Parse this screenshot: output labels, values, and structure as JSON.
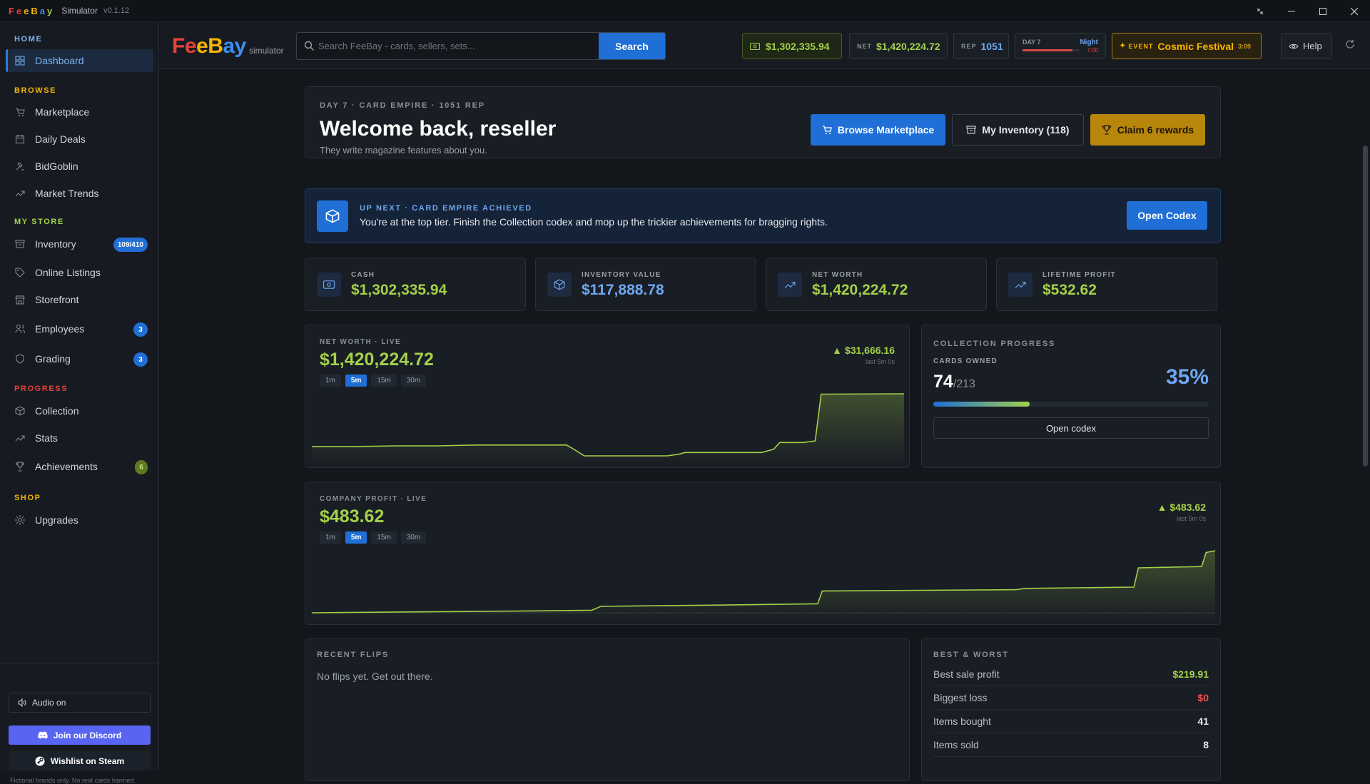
{
  "titlebar": {
    "logo": "FeeBay",
    "app": "Simulator",
    "version": "v0.1.12",
    "controls": [
      "shrink-icon",
      "minimize-icon",
      "maximize-icon",
      "close-icon"
    ]
  },
  "sidebar": {
    "sections": {
      "home": "HOME",
      "browse": "BROWSE",
      "my_store": "MY STORE",
      "progress": "PROGRESS",
      "shop": "SHOP"
    },
    "items": {
      "dashboard": "Dashboard",
      "marketplace": "Marketplace",
      "daily_deals": "Daily Deals",
      "bidgoblin": "BidGoblin",
      "market_trends": "Market Trends",
      "inventory": "Inventory",
      "online_listings": "Online Listings",
      "storefront": "Storefront",
      "employees": "Employees",
      "grading": "Grading",
      "collection": "Collection",
      "stats": "Stats",
      "achievements": "Achievements",
      "upgrades": "Upgrades"
    },
    "badges": {
      "inventory": "109/410",
      "employees": "3",
      "grading": "3",
      "achievements": "6"
    },
    "audio": "Audio on",
    "discord": "Join our Discord",
    "steam": "Wishlist on Steam",
    "footer": "Fictional brands only. No real cards harmed."
  },
  "header": {
    "logo": "FeeBay",
    "logo_sub": "simulator",
    "search_placeholder": "Search FeeBay - cards, sellers, sets...",
    "search_button": "Search",
    "cash": "$1,302,335.94",
    "net_label": "NET",
    "net": "$1,420,224.72",
    "rep_label": "REP",
    "rep": "1051",
    "day": "DAY 7",
    "time_of_day": "Night",
    "time_clock": "7:00",
    "day_progress": 0.88,
    "event_label": "EVENT",
    "event_name": "Cosmic Festival",
    "event_timer": "3:09",
    "help": "Help"
  },
  "welcome": {
    "eyebrow": "DAY 7 · CARD EMPIRE · 1051 REP",
    "title": "Welcome back, reseller",
    "subtitle": "They write magazine features about you.",
    "browse_btn": "Browse Marketplace",
    "inventory_btn": "My Inventory (118)",
    "claim_btn": "Claim 6 rewards"
  },
  "next": {
    "eyebrow": "UP NEXT · CARD EMPIRE ACHIEVED",
    "text": "You're at the top tier. Finish the Collection codex and mop up the trickier achievements for bragging rights.",
    "button": "Open Codex"
  },
  "stats": [
    {
      "label": "CASH",
      "value": "$1,302,335.94",
      "color": "#a3d14a",
      "icon": "cash-icon"
    },
    {
      "label": "INVENTORY VALUE",
      "value": "$117,888.78",
      "color": "#6ea7f0",
      "icon": "cube-icon"
    },
    {
      "label": "NET WORTH",
      "value": "$1,420,224.72",
      "color": "#a3d14a",
      "icon": "trend-up-icon"
    },
    {
      "label": "LIFETIME PROFIT",
      "value": "$532.62",
      "color": "#a3d14a",
      "icon": "trend-up-icon"
    }
  ],
  "networth_chart": {
    "eyebrow": "NET WORTH · LIVE",
    "value": "$1,420,224.72",
    "delta": "▲ $31,666.16",
    "delta_sub": "last 5m 0s",
    "ranges": [
      "1m",
      "5m",
      "15m",
      "30m"
    ],
    "active_range": "5m"
  },
  "profit_chart": {
    "eyebrow": "COMPANY PROFIT · LIVE",
    "value": "$483.62",
    "delta": "▲ $483.62",
    "delta_sub": "last 5m 0s",
    "ranges": [
      "1m",
      "5m",
      "15m",
      "30m"
    ],
    "active_range": "5m"
  },
  "collection": {
    "eyebrow": "COLLECTION PROGRESS",
    "label": "CARDS OWNED",
    "owned": "74",
    "total": "/213",
    "percent": "35%",
    "progress": 0.35,
    "button": "Open codex"
  },
  "flips": {
    "eyebrow": "RECENT FLIPS",
    "empty": "No flips yet. Get out there."
  },
  "best_worst": {
    "eyebrow": "BEST & WORST",
    "rows": [
      {
        "label": "Best sale profit",
        "value": "$219.91",
        "color": "#a3d14a"
      },
      {
        "label": "Biggest loss",
        "value": "$0",
        "color": "#f05252"
      },
      {
        "label": "Items bought",
        "value": "41",
        "color": "#e6e9ee"
      },
      {
        "label": "Items sold",
        "value": "8",
        "color": "#e6e9ee"
      }
    ]
  },
  "chart_data": [
    {
      "type": "area",
      "title": "NET WORTH · LIVE",
      "x": [
        0,
        0.07,
        0.14,
        0.21,
        0.28,
        0.35,
        0.43,
        0.44,
        0.46,
        0.55,
        0.6,
        0.62,
        0.63,
        0.76,
        0.78,
        0.79,
        0.83,
        0.85,
        0.86,
        1.0
      ],
      "values": [
        1388500,
        1388500,
        1389000,
        1389000,
        1389500,
        1389500,
        1389500,
        1387500,
        1383000,
        1383000,
        1383000,
        1384000,
        1385000,
        1385000,
        1387000,
        1391000,
        1391000,
        1392000,
        1420000,
        1420224.72
      ]
    },
    {
      "type": "area",
      "title": "COMPANY PROFIT · LIVE",
      "x": [
        0,
        0.08,
        0.17,
        0.25,
        0.31,
        0.32,
        0.45,
        0.56,
        0.565,
        0.78,
        0.79,
        0.91,
        0.915,
        0.985,
        0.99,
        1.0
      ],
      "values": [
        0,
        5,
        10,
        15,
        20,
        50,
        60,
        70,
        170,
        180,
        190,
        200,
        350,
        360,
        470,
        483.62
      ]
    }
  ]
}
